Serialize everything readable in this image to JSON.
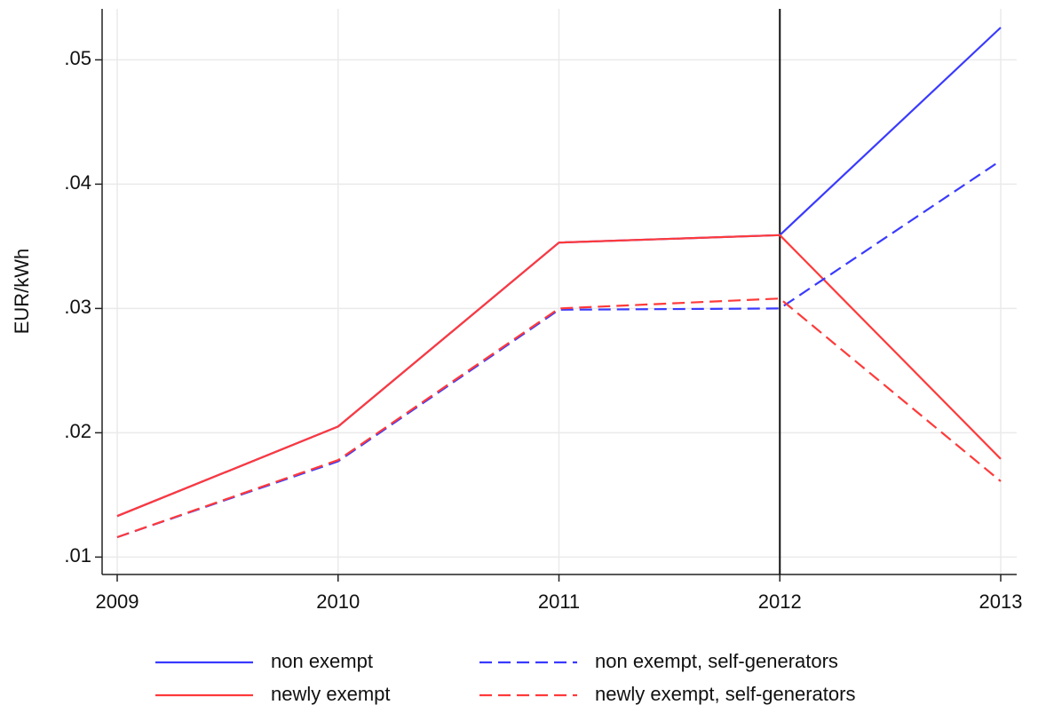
{
  "chart_data": {
    "type": "line",
    "y_label": "EUR/kWh",
    "x": [
      2009,
      2010,
      2011,
      2012,
      2013
    ],
    "series": [
      {
        "name": "non exempt",
        "color": "#3a3aff",
        "dashed": false,
        "values": [
          0.0133,
          0.0205,
          0.0353,
          0.0359,
          0.0526
        ]
      },
      {
        "name": "newly exempt",
        "color": "#ff3a3a",
        "dashed": false,
        "values": [
          0.0133,
          0.0205,
          0.0353,
          0.0359,
          0.0179
        ]
      },
      {
        "name": "non exempt, self-generators",
        "color": "#3a3aff",
        "dashed": true,
        "values": [
          0.0116,
          0.0177,
          0.0299,
          0.03,
          0.0419
        ]
      },
      {
        "name": "newly exempt, self-generators",
        "color": "#ff3a3a",
        "dashed": true,
        "values": [
          0.0116,
          0.0178,
          0.03,
          0.0308,
          0.0161
        ]
      }
    ],
    "xlim": [
      2009,
      2013
    ],
    "ylim": [
      0.0086,
      0.0541
    ],
    "xticks": [
      2009,
      2010,
      2011,
      2012,
      2013
    ],
    "yticks": [
      {
        "value": 0.01,
        "label": ".01"
      },
      {
        "value": 0.02,
        "label": ".02"
      },
      {
        "value": 0.03,
        "label": ".03"
      },
      {
        "value": 0.04,
        "label": ".04"
      },
      {
        "value": 0.05,
        "label": ".05"
      }
    ],
    "vline": 2012,
    "grid": true
  }
}
